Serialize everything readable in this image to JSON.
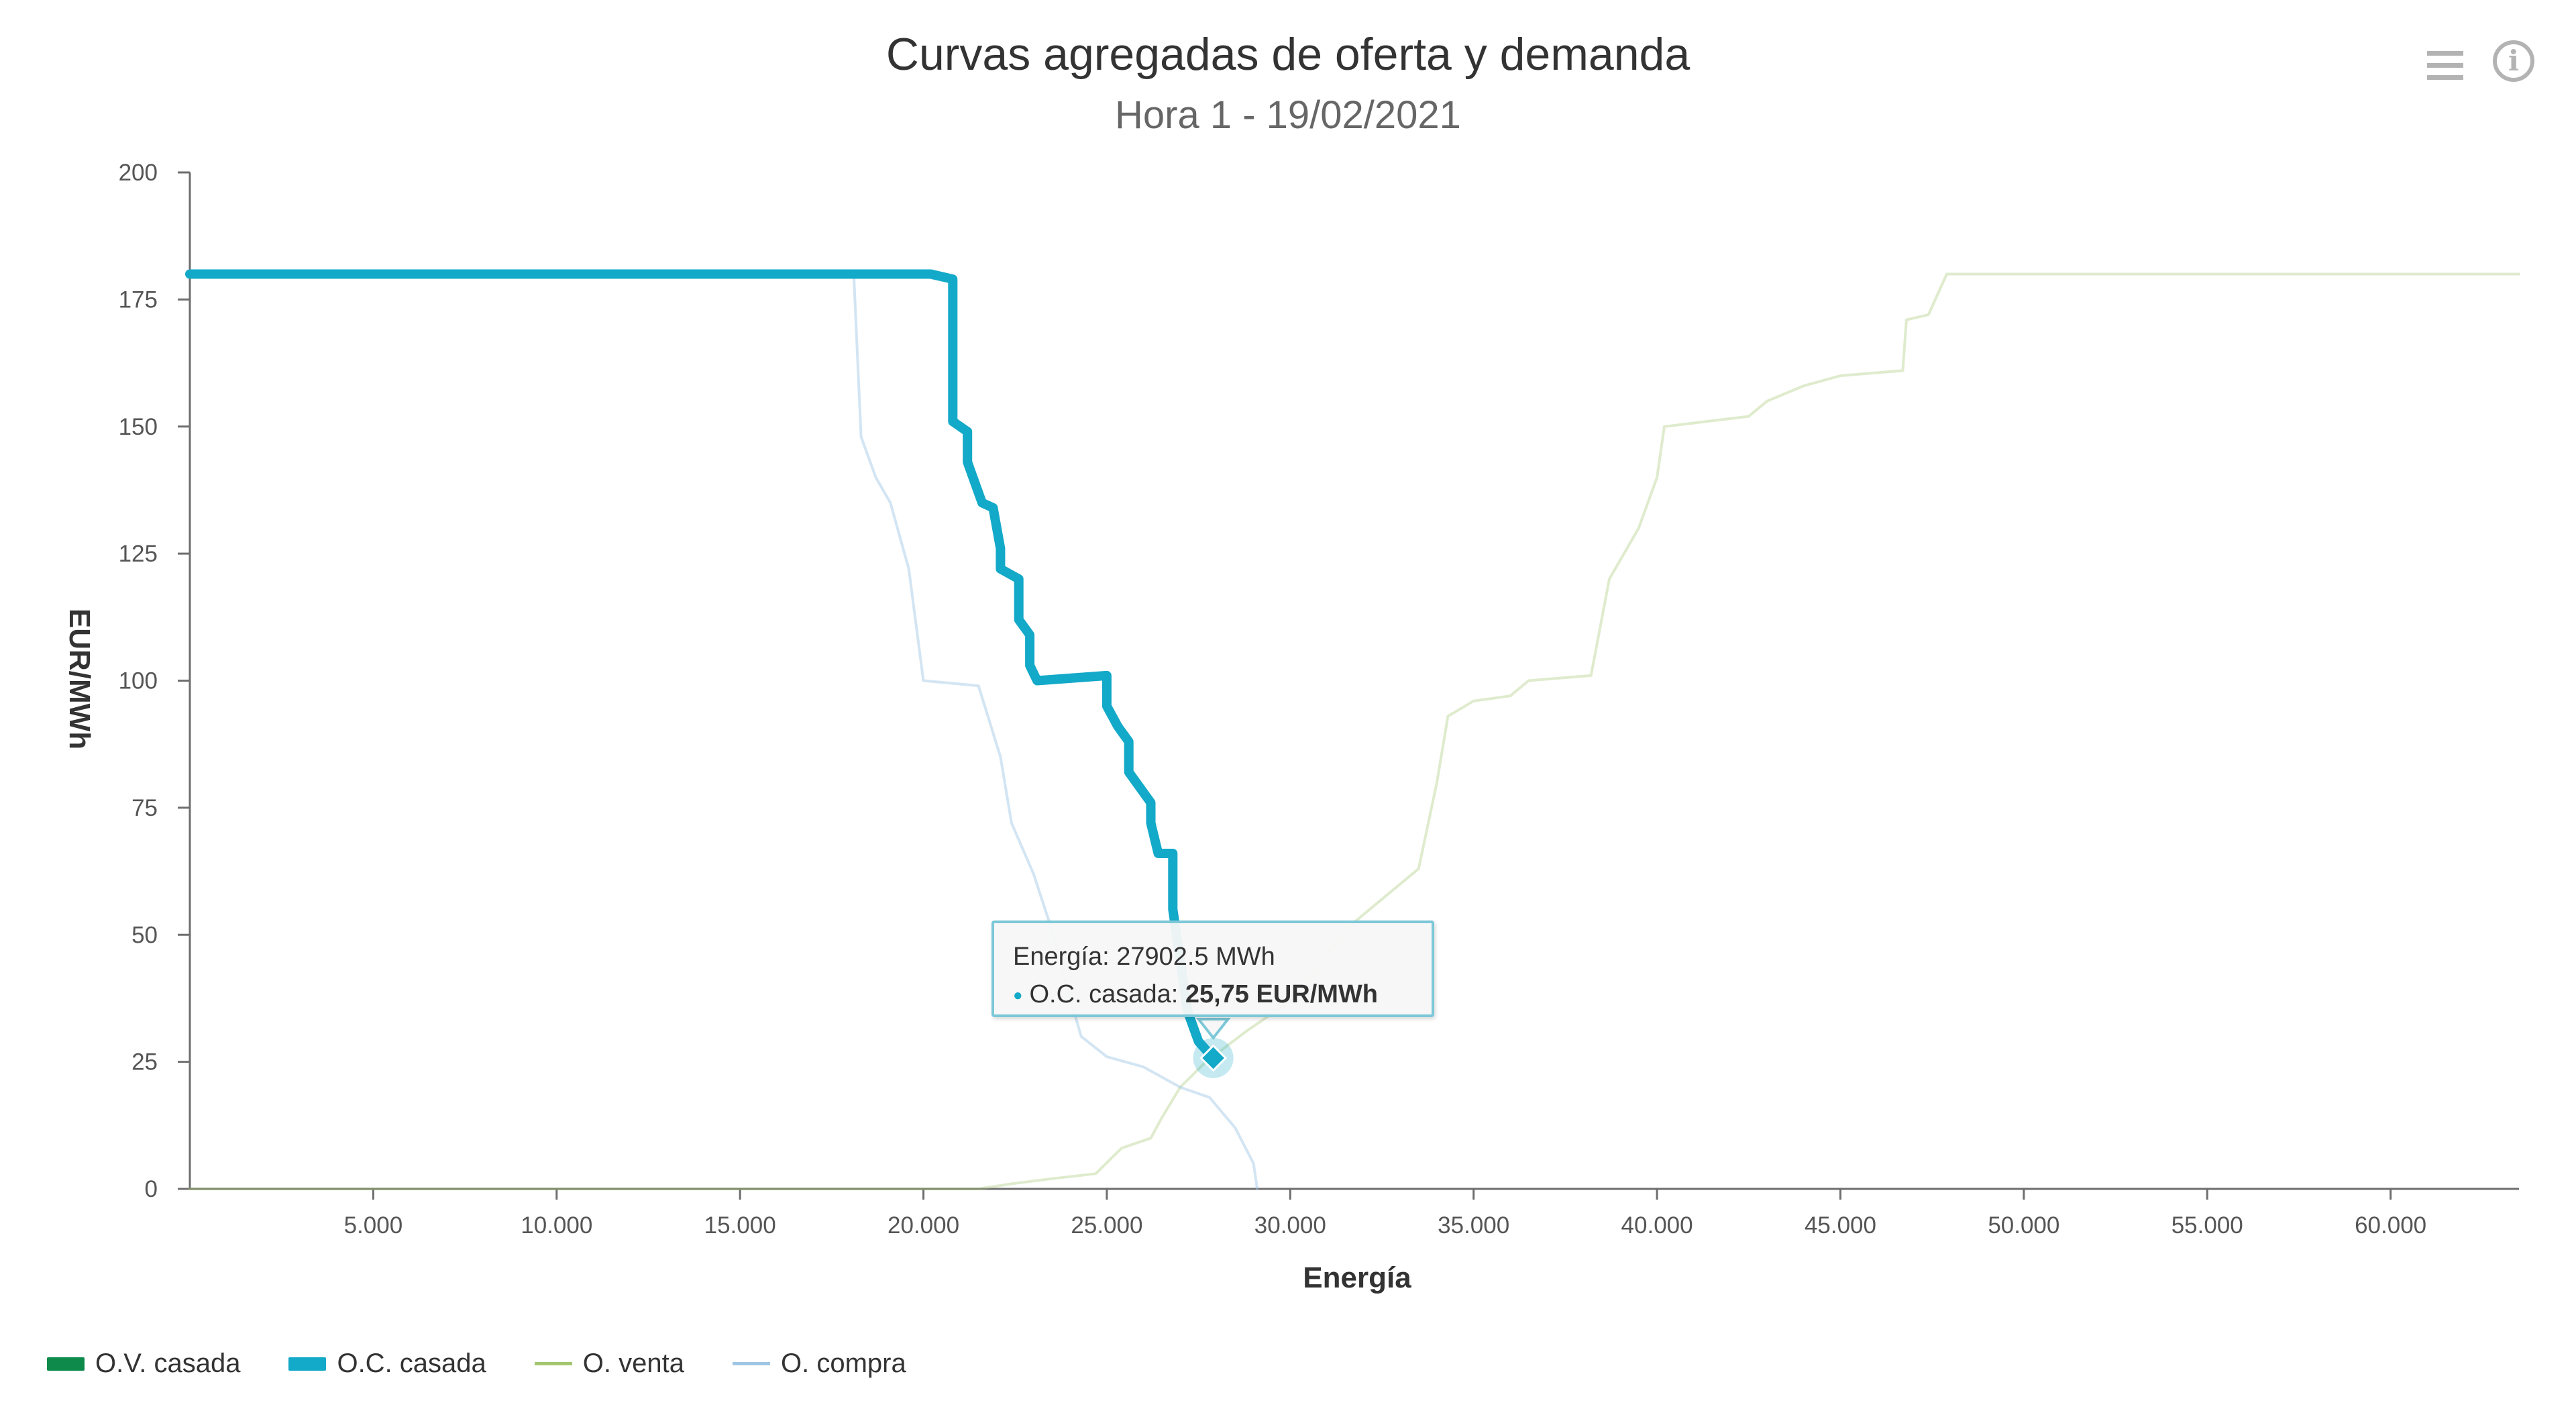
{
  "header": {
    "title": "Curvas agregadas de oferta y demanda",
    "subtitle": "Hora 1 - 19/02/2021"
  },
  "toolbar": {
    "menu_icon": "hamburger-menu-icon",
    "info_icon": "info-icon",
    "info_glyph": "i"
  },
  "tooltip": {
    "energy_line": "Energía: 27902.5 MWh",
    "series_label": "O.C. casada: ",
    "series_value": "25,75 EUR/MWh"
  },
  "legend": [
    {
      "label": "O.V. casada",
      "color": "#0e8a4b",
      "style": "bar"
    },
    {
      "label": "O.C. casada",
      "color": "#13a9c8",
      "style": "bar"
    },
    {
      "label": "O. venta",
      "color": "#a3c66f",
      "style": "line"
    },
    {
      "label": "O. compra",
      "color": "#9ec6e4",
      "style": "line"
    }
  ],
  "chart_data": {
    "type": "line",
    "title": "Curvas agregadas de oferta y demanda",
    "subtitle": "Hora 1 - 19/02/2021",
    "xlabel": "Energía",
    "ylabel": "EUR/MWh",
    "xlim": [
      0,
      63500
    ],
    "ylim": [
      0,
      200
    ],
    "xticks": [
      5000,
      10000,
      15000,
      20000,
      25000,
      30000,
      35000,
      40000,
      45000,
      50000,
      55000,
      60000
    ],
    "xtick_labels": [
      "5.000",
      "10.000",
      "15.000",
      "20.000",
      "25.000",
      "30.000",
      "35.000",
      "40.000",
      "45.000",
      "50.000",
      "55.000",
      "60.000"
    ],
    "yticks": [
      0,
      25,
      50,
      75,
      100,
      125,
      150,
      175,
      200
    ],
    "ytick_labels": [
      "0",
      "25",
      "50",
      "75",
      "100",
      "125",
      "150",
      "175",
      "200"
    ],
    "legend_position": "bottom-left",
    "grid": false,
    "series": [
      {
        "name": "O. venta",
        "color": "#a3c66f",
        "opacity": 0.35,
        "width": 4,
        "points": [
          [
            0,
            0
          ],
          [
            21500,
            0
          ],
          [
            22400,
            1
          ],
          [
            23500,
            2
          ],
          [
            24700,
            3
          ],
          [
            25400,
            8
          ],
          [
            26200,
            10
          ],
          [
            26500,
            14
          ],
          [
            27000,
            20
          ],
          [
            27700,
            25
          ],
          [
            28800,
            31
          ],
          [
            30200,
            38
          ],
          [
            31500,
            51
          ],
          [
            33500,
            63
          ],
          [
            34000,
            80
          ],
          [
            34300,
            93
          ],
          [
            35000,
            96
          ],
          [
            36000,
            97
          ],
          [
            36500,
            100
          ],
          [
            38200,
            101
          ],
          [
            38700,
            120
          ],
          [
            39500,
            130
          ],
          [
            40000,
            140
          ],
          [
            40200,
            150
          ],
          [
            42500,
            152
          ],
          [
            43000,
            155
          ],
          [
            44000,
            158
          ],
          [
            45000,
            160
          ],
          [
            46700,
            161
          ],
          [
            46800,
            171
          ],
          [
            47400,
            172
          ],
          [
            47900,
            180
          ],
          [
            63500,
            180
          ]
        ]
      },
      {
        "name": "O. compra",
        "color": "#9ec6e4",
        "opacity": 0.45,
        "width": 4,
        "points": [
          [
            0,
            180
          ],
          [
            18100,
            180
          ],
          [
            18300,
            148
          ],
          [
            18700,
            140
          ],
          [
            19100,
            135
          ],
          [
            19600,
            122
          ],
          [
            20000,
            100
          ],
          [
            21500,
            99
          ],
          [
            22100,
            85
          ],
          [
            22400,
            72
          ],
          [
            23000,
            62
          ],
          [
            23500,
            51
          ],
          [
            23900,
            40
          ],
          [
            24300,
            30
          ],
          [
            25000,
            26
          ],
          [
            26000,
            24
          ],
          [
            27000,
            20
          ],
          [
            27800,
            18
          ],
          [
            28500,
            12
          ],
          [
            29000,
            5
          ],
          [
            29100,
            0
          ]
        ]
      },
      {
        "name": "O.C. casada",
        "color": "#13a9c8",
        "opacity": 1,
        "width": 14,
        "points": [
          [
            0,
            180
          ],
          [
            20200,
            180
          ],
          [
            20800,
            179
          ],
          [
            20800,
            151
          ],
          [
            21200,
            149
          ],
          [
            21200,
            143
          ],
          [
            21400,
            139
          ],
          [
            21600,
            135
          ],
          [
            21900,
            134
          ],
          [
            22100,
            126
          ],
          [
            22100,
            122
          ],
          [
            22600,
            120
          ],
          [
            22600,
            112
          ],
          [
            22900,
            109
          ],
          [
            22900,
            103
          ],
          [
            23100,
            100
          ],
          [
            25000,
            101
          ],
          [
            25000,
            95
          ],
          [
            25300,
            91
          ],
          [
            25600,
            88
          ],
          [
            25600,
            82
          ],
          [
            25900,
            79
          ],
          [
            26200,
            76
          ],
          [
            26200,
            72
          ],
          [
            26400,
            66
          ],
          [
            26800,
            66
          ],
          [
            26800,
            55
          ],
          [
            27000,
            45
          ],
          [
            27200,
            35
          ],
          [
            27500,
            29
          ],
          [
            27902.5,
            25.75
          ]
        ]
      },
      {
        "name": "O.V. casada",
        "color": "#0e8a4b",
        "opacity": 1,
        "width": 0,
        "points": []
      }
    ],
    "highlight_point": {
      "series": "O.C. casada",
      "x": 27902.5,
      "y": 25.75
    }
  }
}
